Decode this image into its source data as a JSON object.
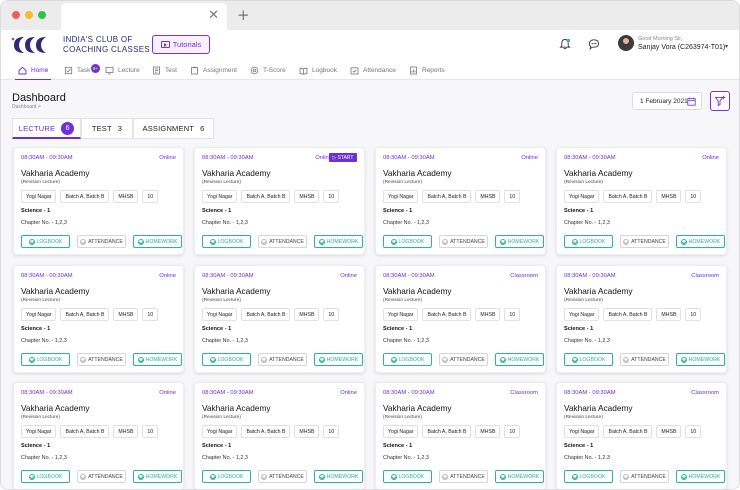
{
  "browser": {
    "close_glyph": "✕",
    "new_tab_glyph": "+"
  },
  "header": {
    "brand_line1": "INDIA'S CLUB OF",
    "brand_line2": "COACHING CLASSES",
    "tutorials_label": "Tutorials",
    "greeting": "Good Morning Sir,",
    "user_name": "Sanjay Vora (C263974-T01)",
    "caret": "▾"
  },
  "nav": {
    "task_badge": "9+",
    "items": [
      {
        "label": "Home",
        "icon": "home-icon",
        "active": true
      },
      {
        "label": "Task",
        "icon": "task-icon"
      },
      {
        "label": "Lecture",
        "icon": "lecture-icon"
      },
      {
        "label": "Test",
        "icon": "test-icon"
      },
      {
        "label": "Assignment",
        "icon": "assignment-icon"
      },
      {
        "label": "T-Score",
        "icon": "tscore-icon"
      },
      {
        "label": "Logbook",
        "icon": "logbook-icon"
      },
      {
        "label": "Attendance",
        "icon": "attendance-icon"
      },
      {
        "label": "Reports",
        "icon": "reports-icon"
      }
    ]
  },
  "page": {
    "title": "Dashboard",
    "breadcrumb": "Dashboard >",
    "date": "1 February 2021"
  },
  "tabs": {
    "lecture": {
      "label": "LECTURE",
      "count": "6"
    },
    "test": {
      "label": "TEST",
      "count": "3"
    },
    "assignment": {
      "label": "ASSIGNMENT",
      "count": "6"
    }
  },
  "card_labels": {
    "start": "START",
    "start_glyph": "▷",
    "logbook": "LOGBOOK",
    "attendance": "ATTENDANCE",
    "homework": "HOMEWORK"
  },
  "cards": [
    {
      "time": "08:30AM - 09:30AM",
      "mode": "Online",
      "start": false,
      "institute": "Vakharia Academy",
      "subtitle": "(Revision Lecture)",
      "chips": [
        "Yogi Nagar",
        "Batch A, Batch B",
        "MHSB",
        "10"
      ],
      "subject": "Science - 1",
      "chapter": "Chapter No. - 1,2,3"
    },
    {
      "time": "08:30AM - 09:30AM",
      "mode": "Online",
      "start": true,
      "institute": "Vakharia Academy",
      "subtitle": "(Revision Lecture)",
      "chips": [
        "Yogi Nagar",
        "Batch A, Batch B",
        "MHSB",
        "10"
      ],
      "subject": "Science - 1",
      "chapter": "Chapter No. - 1,2,3"
    },
    {
      "time": "08:30AM - 09:30AM",
      "mode": "Online",
      "start": false,
      "institute": "Vakharia Academy",
      "subtitle": "(Revision Lecture)",
      "chips": [
        "Yogi Nagar",
        "Batch A, Batch B",
        "MHSB",
        "10"
      ],
      "subject": "Science - 1",
      "chapter": "Chapter No. - 1,2,3"
    },
    {
      "time": "08:30AM - 09:30AM",
      "mode": "Online",
      "start": false,
      "institute": "Vakharia Academy",
      "subtitle": "(Revision Lecture)",
      "chips": [
        "Yogi Nagar",
        "Batch A, Batch B",
        "MHSB",
        "10"
      ],
      "subject": "Science - 1",
      "chapter": "Chapter No. - 1,2,3"
    },
    {
      "time": "08:30AM - 09:30AM",
      "mode": "Online",
      "start": false,
      "institute": "Vakharia Academy",
      "subtitle": "(Revision Lecture)",
      "chips": [
        "Yogi Nagar",
        "Batch A, Batch B",
        "MHSB",
        "10"
      ],
      "subject": "Science - 1",
      "chapter": "Chapter No. - 1,2,3"
    },
    {
      "time": "08:30AM - 09:30AM",
      "mode": "Online",
      "start": false,
      "institute": "Vakharia Academy",
      "subtitle": "(Revision Lecture)",
      "chips": [
        "Yogi Nagar",
        "Batch A, Batch B",
        "MHSB",
        "10"
      ],
      "subject": "Science - 1",
      "chapter": "Chapter No. - 1,2,3"
    },
    {
      "time": "08:30AM - 09:30AM",
      "mode": "Classroom",
      "start": false,
      "institute": "Vakharia Academy",
      "subtitle": "(Revision Lecture)",
      "chips": [
        "Yogi Nagar",
        "Batch A, Batch B",
        "MHSB",
        "10"
      ],
      "subject": "Science - 1",
      "chapter": "Chapter No. - 1,2,3"
    },
    {
      "time": "08:30AM - 09:30AM",
      "mode": "Classroom",
      "start": false,
      "institute": "Vakharia Academy",
      "subtitle": "(Revision Lecture)",
      "chips": [
        "Yogi Nagar",
        "Batch A, Batch B",
        "MHSB",
        "10"
      ],
      "subject": "Science - 1",
      "chapter": "Chapter No. - 1,2,3"
    },
    {
      "time": "08:30AM - 09:30AM",
      "mode": "Online",
      "start": false,
      "institute": "Vakharia Academy",
      "subtitle": "(Revision Lecture)",
      "chips": [
        "Yogi Nagar",
        "Batch A, Batch B",
        "MHSB",
        "10"
      ],
      "subject": "Science - 1",
      "chapter": "Chapter No. - 1,2,3"
    },
    {
      "time": "08:30AM - 09:30AM",
      "mode": "Online",
      "start": false,
      "institute": "Vakharia Academy",
      "subtitle": "(Revision Lecture)",
      "chips": [
        "Yogi Nagar",
        "Batch A, Batch B",
        "MHSB",
        "10"
      ],
      "subject": "Science - 1",
      "chapter": "Chapter No. - 1,2,3"
    },
    {
      "time": "08:30AM - 09:30AM",
      "mode": "Classroom",
      "start": false,
      "institute": "Vakharia Academy",
      "subtitle": "(Revision Lecture)",
      "chips": [
        "Yogi Nagar",
        "Batch A, Batch B",
        "MHSB",
        "10"
      ],
      "subject": "Science - 1",
      "chapter": "Chapter No. - 1,2,3"
    },
    {
      "time": "08:30AM - 09:30AM",
      "mode": "Classroom",
      "start": false,
      "institute": "Vakharia Academy",
      "subtitle": "(Revision Lecture)",
      "chips": [
        "Yogi Nagar",
        "Batch A, Batch B",
        "MHSB",
        "10"
      ],
      "subject": "Science - 1",
      "chapter": "Chapter No. - 1,2,3"
    }
  ],
  "colors": {
    "accent": "#6d2fd6",
    "success": "#2bb49a",
    "brand": "#2d2a7a"
  }
}
